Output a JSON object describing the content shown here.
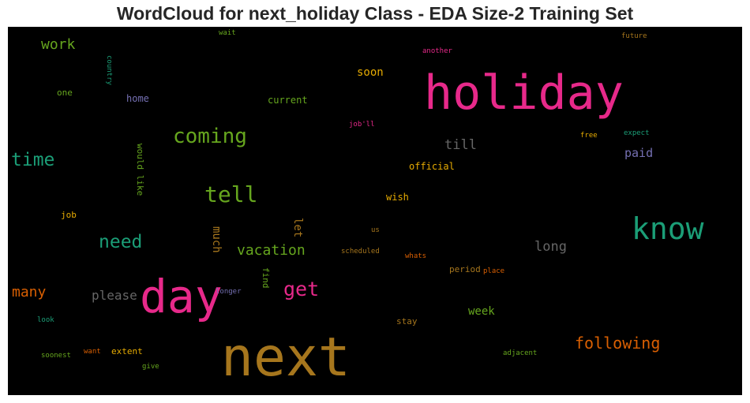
{
  "title": "WordCloud for next_holiday Class - EDA Size-2 Training Set",
  "words": [
    {
      "text": "holiday",
      "color": "#e7298a"
    },
    {
      "text": "next",
      "color": "#a6761d"
    },
    {
      "text": "day",
      "color": "#e7298a"
    },
    {
      "text": "know",
      "color": "#1b9e77"
    },
    {
      "text": "coming",
      "color": "#66a61e"
    },
    {
      "text": "tell",
      "color": "#66a61e"
    },
    {
      "text": "time",
      "color": "#1b9e77"
    },
    {
      "text": "need",
      "color": "#1b9e77"
    },
    {
      "text": "get",
      "color": "#e7298a"
    },
    {
      "text": "following",
      "color": "#d95f02"
    },
    {
      "text": "vacation",
      "color": "#66a61e"
    },
    {
      "text": "work",
      "color": "#66a61e"
    },
    {
      "text": "many",
      "color": "#d95f02"
    },
    {
      "text": "please",
      "color": "#666666"
    },
    {
      "text": "long",
      "color": "#666666"
    },
    {
      "text": "till",
      "color": "#666666"
    },
    {
      "text": "soon",
      "color": "#e6ab02"
    },
    {
      "text": "paid",
      "color": "#7570b3"
    },
    {
      "text": "week",
      "color": "#66a61e"
    },
    {
      "text": "much",
      "color": "#a6761d"
    },
    {
      "text": "let",
      "color": "#a6761d"
    },
    {
      "text": "wish",
      "color": "#e6ab02"
    },
    {
      "text": "official",
      "color": "#e6ab02"
    },
    {
      "text": "home",
      "color": "#7570b3"
    },
    {
      "text": "current",
      "color": "#66a61e"
    },
    {
      "text": "one",
      "color": "#66a61e"
    },
    {
      "text": "job",
      "color": "#e6ab02"
    },
    {
      "text": "would like",
      "color": "#66a61e"
    },
    {
      "text": "find",
      "color": "#66a61e"
    },
    {
      "text": "stay",
      "color": "#a6761d"
    },
    {
      "text": "period",
      "color": "#a6761d"
    },
    {
      "text": "extent",
      "color": "#e6ab02"
    },
    {
      "text": "country",
      "color": "#1b9e77"
    },
    {
      "text": "wait",
      "color": "#66a61e"
    },
    {
      "text": "another",
      "color": "#e7298a"
    },
    {
      "text": "future",
      "color": "#a6761d"
    },
    {
      "text": "job'll",
      "color": "#e7298a"
    },
    {
      "text": "free",
      "color": "#e6ab02"
    },
    {
      "text": "expect",
      "color": "#1b9e77"
    },
    {
      "text": "us",
      "color": "#a6761d"
    },
    {
      "text": "scheduled",
      "color": "#a6761d"
    },
    {
      "text": "whats",
      "color": "#d95f02"
    },
    {
      "text": "place",
      "color": "#d95f02"
    },
    {
      "text": "longer",
      "color": "#7570b3"
    },
    {
      "text": "look",
      "color": "#1b9e77"
    },
    {
      "text": "soonest",
      "color": "#66a61e"
    },
    {
      "text": "want",
      "color": "#d95f02"
    },
    {
      "text": "give",
      "color": "#66a61e"
    },
    {
      "text": "adjacent",
      "color": "#66a61e"
    }
  ]
}
